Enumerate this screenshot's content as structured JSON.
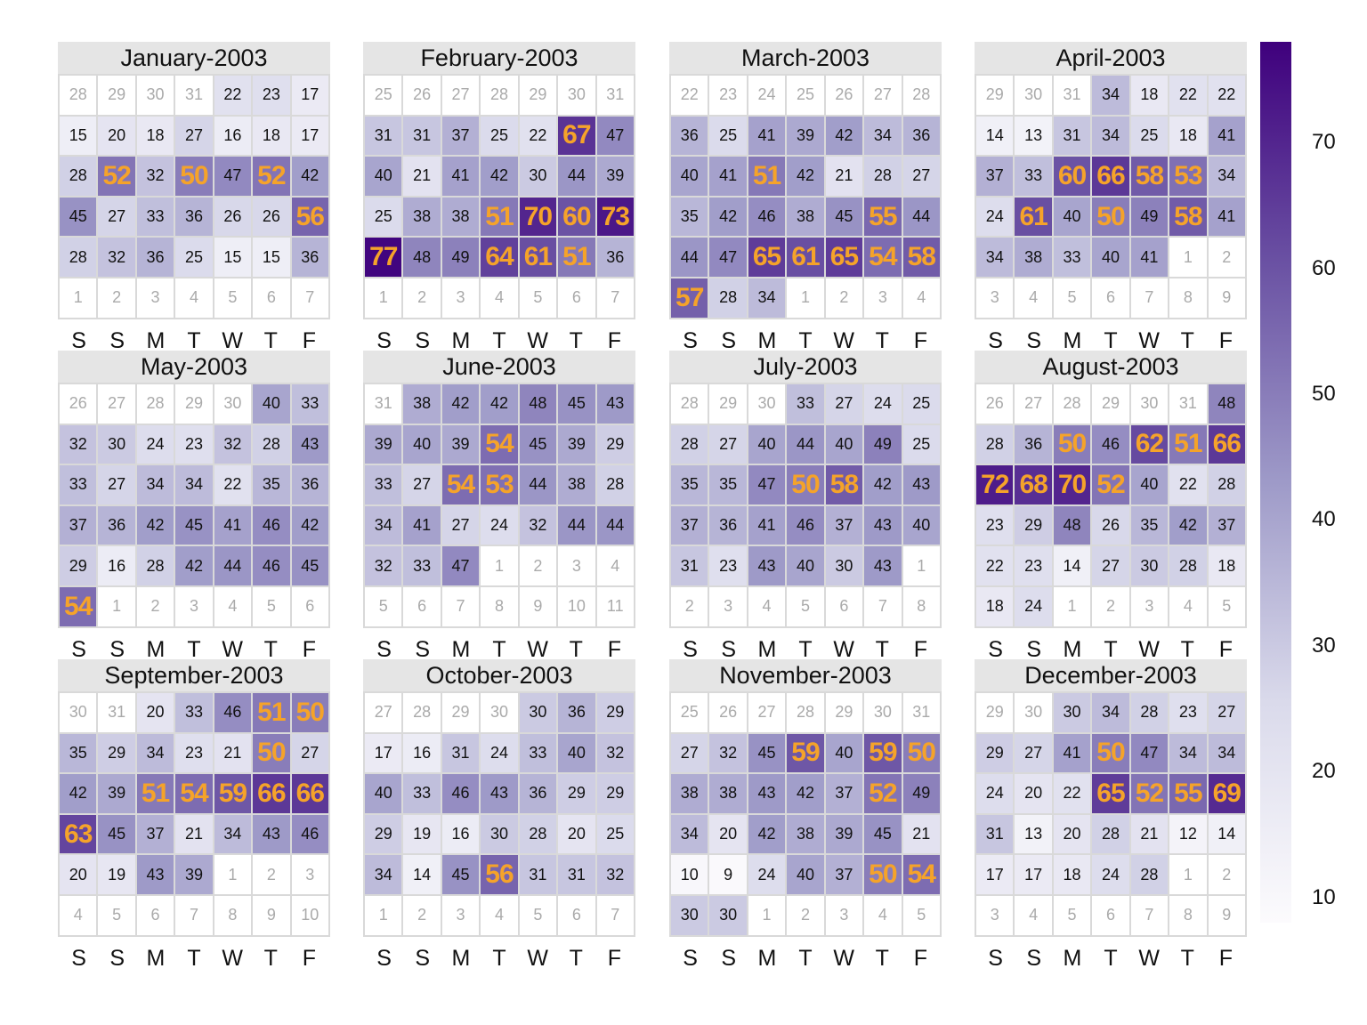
{
  "chart_data": {
    "type": "heatmap",
    "subtype": "calendar",
    "year": 2003,
    "weekday_labels": [
      "S",
      "S",
      "M",
      "T",
      "W",
      "T",
      "F"
    ],
    "highlight_threshold": 50,
    "legend": {
      "position": "right",
      "ticks": [
        "10",
        "20",
        "30",
        "40",
        "50",
        "60",
        "70"
      ],
      "range": [
        8,
        78
      ],
      "colors": [
        "#fcfbfd",
        "#dadaeb",
        "#9e9ac8",
        "#6a51a3",
        "#3f007d"
      ]
    },
    "months": [
      {
        "title": "January-2003",
        "days": [
          [
            28,
            29,
            30,
            31,
            22,
            23,
            17
          ],
          [
            15,
            20,
            18,
            27,
            16,
            18,
            17
          ],
          [
            28,
            52,
            32,
            50,
            47,
            52,
            42
          ],
          [
            45,
            27,
            33,
            36,
            26,
            26,
            56
          ],
          [
            28,
            32,
            36,
            25,
            15,
            15,
            36
          ],
          [
            1,
            2,
            3,
            4,
            5,
            6,
            7
          ]
        ],
        "lead": 4,
        "count": 31
      },
      {
        "title": "February-2003",
        "days": [
          [
            25,
            26,
            27,
            28,
            29,
            30,
            31
          ],
          [
            31,
            31,
            37,
            25,
            22,
            67,
            47
          ],
          [
            40,
            21,
            41,
            42,
            30,
            44,
            39
          ],
          [
            25,
            38,
            38,
            51,
            70,
            60,
            73
          ],
          [
            77,
            48,
            49,
            64,
            61,
            51,
            36
          ],
          [
            1,
            2,
            3,
            4,
            5,
            6,
            7
          ]
        ],
        "lead": 7,
        "count": 28
      },
      {
        "title": "March-2003",
        "days": [
          [
            22,
            23,
            24,
            25,
            26,
            27,
            28
          ],
          [
            36,
            25,
            41,
            39,
            42,
            34,
            36
          ],
          [
            40,
            41,
            51,
            42,
            21,
            28,
            27
          ],
          [
            35,
            42,
            46,
            38,
            45,
            55,
            44
          ],
          [
            44,
            47,
            65,
            61,
            65,
            54,
            58
          ],
          [
            57,
            28,
            34,
            1,
            2,
            3,
            4
          ]
        ],
        "lead": 7,
        "count": 31
      },
      {
        "title": "April-2003",
        "days": [
          [
            29,
            30,
            31,
            34,
            18,
            22,
            22
          ],
          [
            14,
            13,
            31,
            34,
            25,
            18,
            41
          ],
          [
            37,
            33,
            60,
            66,
            58,
            53,
            34
          ],
          [
            24,
            61,
            40,
            50,
            49,
            58,
            41
          ],
          [
            34,
            38,
            33,
            40,
            41,
            1,
            2
          ],
          [
            3,
            4,
            5,
            6,
            7,
            8,
            9
          ]
        ],
        "lead": 3,
        "count": 30
      },
      {
        "title": "May-2003",
        "days": [
          [
            26,
            27,
            28,
            29,
            30,
            40,
            33
          ],
          [
            32,
            30,
            24,
            23,
            32,
            28,
            43
          ],
          [
            33,
            27,
            34,
            34,
            22,
            35,
            36
          ],
          [
            37,
            36,
            42,
            45,
            41,
            46,
            42
          ],
          [
            29,
            16,
            28,
            42,
            44,
            46,
            45
          ],
          [
            54,
            1,
            2,
            3,
            4,
            5,
            6
          ]
        ],
        "lead": 5,
        "count": 31
      },
      {
        "title": "June-2003",
        "days": [
          [
            31,
            38,
            42,
            42,
            48,
            45,
            43
          ],
          [
            39,
            40,
            39,
            54,
            45,
            39,
            29
          ],
          [
            33,
            27,
            54,
            53,
            44,
            38,
            28
          ],
          [
            34,
            41,
            27,
            24,
            32,
            44,
            44
          ],
          [
            32,
            33,
            47,
            1,
            2,
            3,
            4
          ],
          [
            5,
            6,
            7,
            8,
            9,
            10,
            11
          ]
        ],
        "lead": 1,
        "count": 30
      },
      {
        "title": "July-2003",
        "days": [
          [
            28,
            29,
            30,
            33,
            27,
            24,
            25
          ],
          [
            28,
            27,
            40,
            44,
            40,
            49,
            25
          ],
          [
            35,
            35,
            47,
            50,
            58,
            42,
            43
          ],
          [
            37,
            36,
            41,
            46,
            37,
            43,
            40
          ],
          [
            31,
            23,
            43,
            40,
            30,
            43,
            1
          ],
          [
            2,
            3,
            4,
            5,
            6,
            7,
            8
          ]
        ],
        "lead": 3,
        "count": 31
      },
      {
        "title": "August-2003",
        "days": [
          [
            26,
            27,
            28,
            29,
            30,
            31,
            48
          ],
          [
            28,
            36,
            50,
            46,
            62,
            51,
            66
          ],
          [
            72,
            68,
            70,
            52,
            40,
            22,
            28
          ],
          [
            23,
            29,
            48,
            26,
            35,
            42,
            37
          ],
          [
            22,
            23,
            14,
            27,
            30,
            28,
            18
          ],
          [
            18,
            24,
            1,
            2,
            3,
            4,
            5
          ]
        ],
        "lead": 6,
        "count": 31
      },
      {
        "title": "September-2003",
        "days": [
          [
            30,
            31,
            20,
            33,
            46,
            51,
            50
          ],
          [
            35,
            29,
            34,
            23,
            21,
            50,
            27
          ],
          [
            42,
            39,
            51,
            54,
            59,
            66,
            66
          ],
          [
            63,
            45,
            37,
            21,
            34,
            43,
            46
          ],
          [
            20,
            19,
            43,
            39,
            1,
            2,
            3
          ],
          [
            4,
            5,
            6,
            7,
            8,
            9,
            10
          ]
        ],
        "lead": 2,
        "count": 30
      },
      {
        "title": "October-2003",
        "days": [
          [
            27,
            28,
            29,
            30,
            30,
            36,
            29
          ],
          [
            17,
            16,
            31,
            24,
            33,
            40,
            32
          ],
          [
            40,
            33,
            46,
            43,
            36,
            29,
            29
          ],
          [
            29,
            19,
            16,
            30,
            28,
            20,
            25
          ],
          [
            34,
            14,
            45,
            56,
            31,
            31,
            32
          ],
          [
            1,
            2,
            3,
            4,
            5,
            6,
            7
          ]
        ],
        "lead": 4,
        "count": 31
      },
      {
        "title": "November-2003",
        "days": [
          [
            25,
            26,
            27,
            28,
            29,
            30,
            31
          ],
          [
            27,
            32,
            45,
            59,
            40,
            59,
            50
          ],
          [
            38,
            38,
            43,
            42,
            37,
            52,
            49
          ],
          [
            34,
            20,
            42,
            38,
            39,
            45,
            21
          ],
          [
            10,
            9,
            24,
            40,
            37,
            50,
            54
          ],
          [
            30,
            30,
            1,
            2,
            3,
            4,
            5
          ]
        ],
        "lead": 7,
        "count": 30
      },
      {
        "title": "December-2003",
        "days": [
          [
            29,
            30,
            30,
            34,
            28,
            23,
            27
          ],
          [
            29,
            27,
            41,
            50,
            47,
            34,
            34
          ],
          [
            24,
            20,
            22,
            65,
            52,
            55,
            69
          ],
          [
            31,
            13,
            20,
            28,
            21,
            12,
            14
          ],
          [
            17,
            17,
            18,
            24,
            28,
            1,
            2
          ],
          [
            3,
            4,
            5,
            6,
            7,
            8,
            9
          ]
        ],
        "lead": 2,
        "count": 31
      }
    ]
  }
}
